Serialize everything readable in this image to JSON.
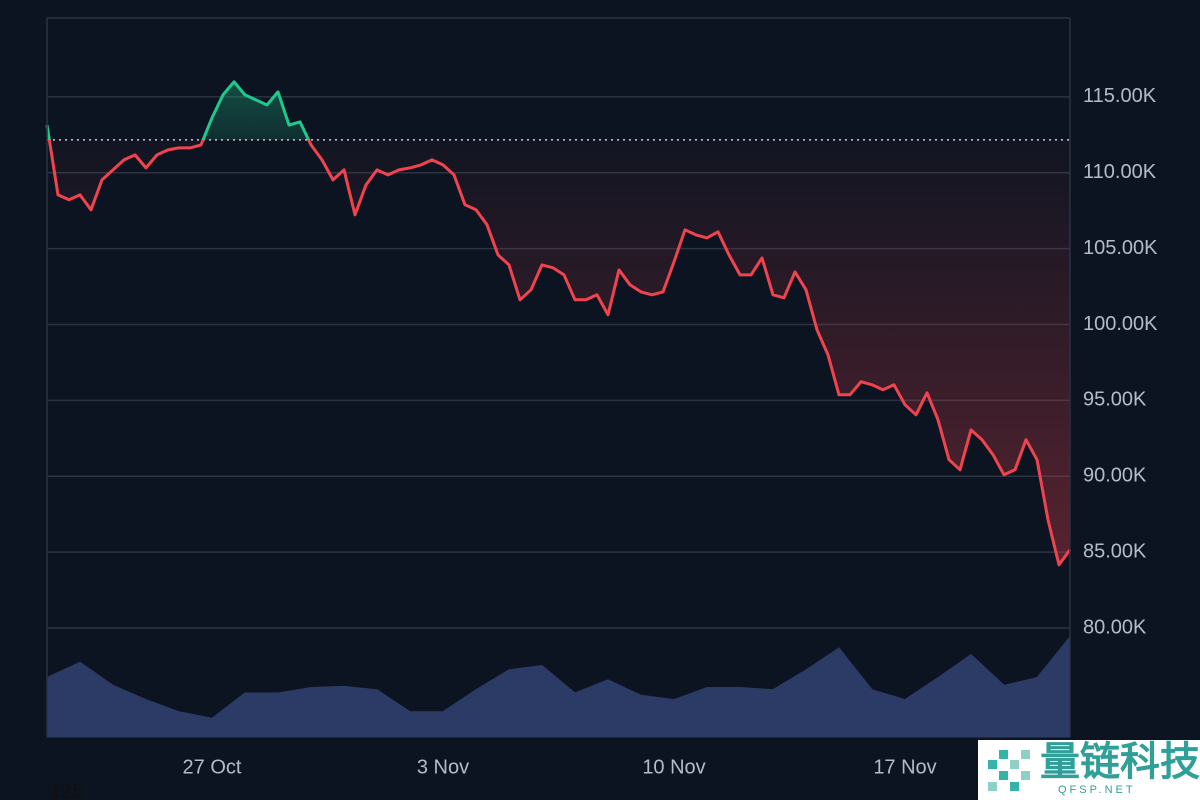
{
  "chart_data": [
    {
      "type": "line",
      "categories": [
        null,
        null,
        null,
        null,
        null,
        null,
        null,
        null,
        null,
        null,
        null,
        null,
        null,
        null,
        null,
        "27 Oct",
        null,
        null,
        null,
        null,
        null,
        null,
        null,
        null,
        null,
        null,
        null,
        null,
        null,
        null,
        null,
        null,
        null,
        null,
        null,
        null,
        "3 Nov",
        null,
        null,
        null,
        null,
        null,
        null,
        null,
        null,
        null,
        null,
        null,
        null,
        null,
        null,
        null,
        null,
        null,
        null,
        null,
        null,
        "10 Nov",
        null,
        null,
        null,
        null,
        null,
        null,
        null,
        null,
        null,
        null,
        null,
        null,
        null,
        null,
        null,
        null,
        null,
        null,
        null,
        null,
        "17 Nov",
        null,
        null,
        null,
        null,
        null,
        null,
        null,
        null,
        null,
        null,
        null,
        null,
        null,
        null,
        null
      ],
      "values": [
        113150,
        108540,
        108220,
        108540,
        107560,
        109530,
        110190,
        110850,
        111180,
        110320,
        111180,
        111510,
        111640,
        111640,
        111840,
        113620,
        115130,
        115990,
        115130,
        114800,
        114470,
        115330,
        113150,
        113350,
        111840,
        110850,
        109530,
        110190,
        107230,
        109200,
        110190,
        109860,
        110190,
        110320,
        110520,
        110850,
        110520,
        109860,
        107890,
        107560,
        106570,
        104590,
        103930,
        101630,
        102290,
        103930,
        103740,
        103270,
        101630,
        101630,
        101960,
        100640,
        103600,
        102620,
        102150,
        101960,
        102150,
        104130,
        106240,
        105910,
        105710,
        106110,
        104590,
        103270,
        103270,
        104390,
        101960,
        101760,
        103470,
        102290,
        99650,
        98000,
        95370,
        95370,
        96230,
        96030,
        95700,
        96030,
        94710,
        94050,
        95500,
        93720,
        91090,
        90430,
        93060,
        92410,
        91420,
        90100,
        90430,
        92410,
        91090,
        87130,
        84170,
        85160
      ],
      "baseline": 112170,
      "color_up": "#1fc98b",
      "color_down": "#f0434e",
      "ylim": [
        72820,
        120200
      ],
      "yticks": [
        {
          "value": 80000,
          "label": "80.00K"
        },
        {
          "value": 85000,
          "label": "85.00K"
        },
        {
          "value": 90000,
          "label": "90.00K"
        },
        {
          "value": 95000,
          "label": "95.00K"
        },
        {
          "value": 100000,
          "label": "100.00K"
        },
        {
          "value": 105000,
          "label": "105.00K"
        },
        {
          "value": 110000,
          "label": "110.00K"
        },
        {
          "value": 115000,
          "label": "115.00K"
        }
      ],
      "grid": true
    },
    {
      "type": "area",
      "values": [
        54,
        68,
        47,
        34,
        23,
        17,
        40,
        40,
        45,
        46,
        43,
        23,
        23,
        43,
        61,
        65,
        40,
        52,
        38,
        34,
        45,
        45,
        43,
        61,
        81,
        43,
        34,
        54,
        75,
        47,
        54,
        91
      ],
      "ylim": [
        0,
        100
      ],
      "color": "#2c3a66"
    }
  ],
  "footer_text": "125",
  "watermark": {
    "title": "量链科技",
    "subtitle": "QFSP.NET"
  }
}
